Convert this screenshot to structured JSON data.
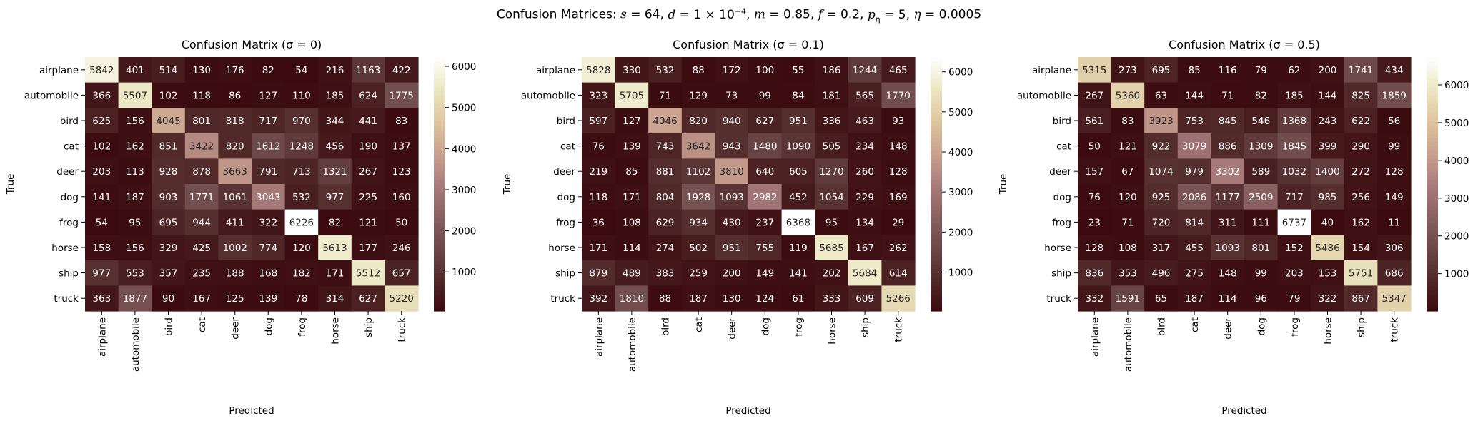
{
  "suptitle": {
    "prefix": "Confusion Matrices: ",
    "params": [
      {
        "sym": "s",
        "sub": "",
        "val": " = 64"
      },
      {
        "sym": "d",
        "sub": "",
        "val": " = 1 × 10",
        "sup": "−4"
      },
      {
        "sym": "m",
        "sub": "",
        "val": " = 0.85"
      },
      {
        "sym": "f",
        "sub": "",
        "val": " = 0.2"
      },
      {
        "sym": "p",
        "sub": "η",
        "val": " = 5"
      },
      {
        "sym": "η",
        "sub": "",
        "val": " = 0.0005"
      }
    ]
  },
  "chart_data": [
    {
      "type": "heatmap",
      "title": "Confusion Matrix (σ = 0)",
      "xlabel": "Predicted",
      "ylabel": "True",
      "x_categories": [
        "airplane",
        "automobile",
        "bird",
        "cat",
        "deer",
        "dog",
        "frog",
        "horse",
        "ship",
        "truck"
      ],
      "y_categories": [
        "airplane",
        "automobile",
        "bird",
        "cat",
        "deer",
        "dog",
        "frog",
        "horse",
        "ship",
        "truck"
      ],
      "values": [
        [
          5842,
          401,
          514,
          130,
          176,
          82,
          54,
          216,
          1163,
          422
        ],
        [
          366,
          5507,
          102,
          118,
          86,
          127,
          110,
          185,
          624,
          1775
        ],
        [
          625,
          156,
          4045,
          801,
          818,
          717,
          970,
          344,
          441,
          83
        ],
        [
          102,
          162,
          851,
          3422,
          820,
          1612,
          1248,
          456,
          190,
          137
        ],
        [
          203,
          113,
          928,
          878,
          3663,
          791,
          713,
          1321,
          267,
          123
        ],
        [
          141,
          187,
          903,
          1771,
          1061,
          3043,
          532,
          977,
          225,
          160
        ],
        [
          54,
          95,
          695,
          944,
          411,
          322,
          6226,
          82,
          121,
          50
        ],
        [
          158,
          156,
          329,
          425,
          1002,
          774,
          120,
          5613,
          177,
          246
        ],
        [
          977,
          553,
          357,
          235,
          188,
          168,
          182,
          171,
          5512,
          657
        ],
        [
          363,
          1877,
          90,
          167,
          125,
          139,
          78,
          314,
          627,
          5220
        ]
      ],
      "colorbar": {
        "vmin": 50,
        "vmax": 6226,
        "ticks": [
          1000,
          2000,
          3000,
          4000,
          5000,
          6000
        ]
      }
    },
    {
      "type": "heatmap",
      "title": "Confusion Matrix (σ = 0.1)",
      "xlabel": "Predicted",
      "ylabel": "True",
      "x_categories": [
        "airplane",
        "automobile",
        "bird",
        "cat",
        "deer",
        "dog",
        "frog",
        "horse",
        "ship",
        "truck"
      ],
      "y_categories": [
        "airplane",
        "automobile",
        "bird",
        "cat",
        "deer",
        "dog",
        "frog",
        "horse",
        "ship",
        "truck"
      ],
      "values": [
        [
          5828,
          330,
          532,
          88,
          172,
          100,
          55,
          186,
          1244,
          465
        ],
        [
          323,
          5705,
          71,
          129,
          73,
          99,
          84,
          181,
          565,
          1770
        ],
        [
          597,
          127,
          4046,
          820,
          940,
          627,
          951,
          336,
          463,
          93
        ],
        [
          76,
          139,
          743,
          3642,
          943,
          1480,
          1090,
          505,
          234,
          148
        ],
        [
          219,
          85,
          881,
          1102,
          3810,
          640,
          605,
          1270,
          260,
          128
        ],
        [
          118,
          171,
          804,
          1928,
          1093,
          2982,
          452,
          1054,
          229,
          169
        ],
        [
          36,
          108,
          629,
          934,
          430,
          237,
          6368,
          95,
          134,
          29
        ],
        [
          171,
          114,
          274,
          502,
          951,
          755,
          119,
          5685,
          167,
          262
        ],
        [
          879,
          489,
          383,
          259,
          200,
          149,
          141,
          202,
          5684,
          614
        ],
        [
          392,
          1810,
          88,
          187,
          130,
          124,
          61,
          333,
          609,
          5266
        ]
      ],
      "colorbar": {
        "vmin": 29,
        "vmax": 6368,
        "ticks": [
          1000,
          2000,
          3000,
          4000,
          5000,
          6000
        ]
      }
    },
    {
      "type": "heatmap",
      "title": "Confusion Matrix (σ = 0.5)",
      "xlabel": "Predicted",
      "ylabel": "True",
      "x_categories": [
        "airplane",
        "automobile",
        "bird",
        "cat",
        "deer",
        "dog",
        "frog",
        "horse",
        "ship",
        "truck"
      ],
      "y_categories": [
        "airplane",
        "automobile",
        "bird",
        "cat",
        "deer",
        "dog",
        "frog",
        "horse",
        "ship",
        "truck"
      ],
      "values": [
        [
          5315,
          273,
          695,
          85,
          116,
          79,
          62,
          200,
          1741,
          434
        ],
        [
          267,
          5360,
          63,
          144,
          71,
          82,
          185,
          144,
          825,
          1859
        ],
        [
          561,
          83,
          3923,
          753,
          845,
          546,
          1368,
          243,
          622,
          56
        ],
        [
          50,
          121,
          922,
          3079,
          886,
          1309,
          1845,
          399,
          290,
          99
        ],
        [
          157,
          67,
          1074,
          979,
          3302,
          589,
          1032,
          1400,
          272,
          128
        ],
        [
          76,
          120,
          925,
          2086,
          1177,
          2509,
          717,
          985,
          256,
          149
        ],
        [
          23,
          71,
          720,
          814,
          311,
          111,
          6737,
          40,
          162,
          11
        ],
        [
          128,
          108,
          317,
          455,
          1093,
          801,
          152,
          5486,
          154,
          306
        ],
        [
          836,
          353,
          496,
          275,
          148,
          99,
          203,
          153,
          5751,
          686
        ],
        [
          332,
          1591,
          65,
          187,
          114,
          96,
          79,
          322,
          867,
          5347
        ]
      ],
      "colorbar": {
        "vmin": 11,
        "vmax": 6737,
        "ticks": [
          1000,
          2000,
          3000,
          4000,
          5000,
          6000
        ]
      }
    }
  ]
}
